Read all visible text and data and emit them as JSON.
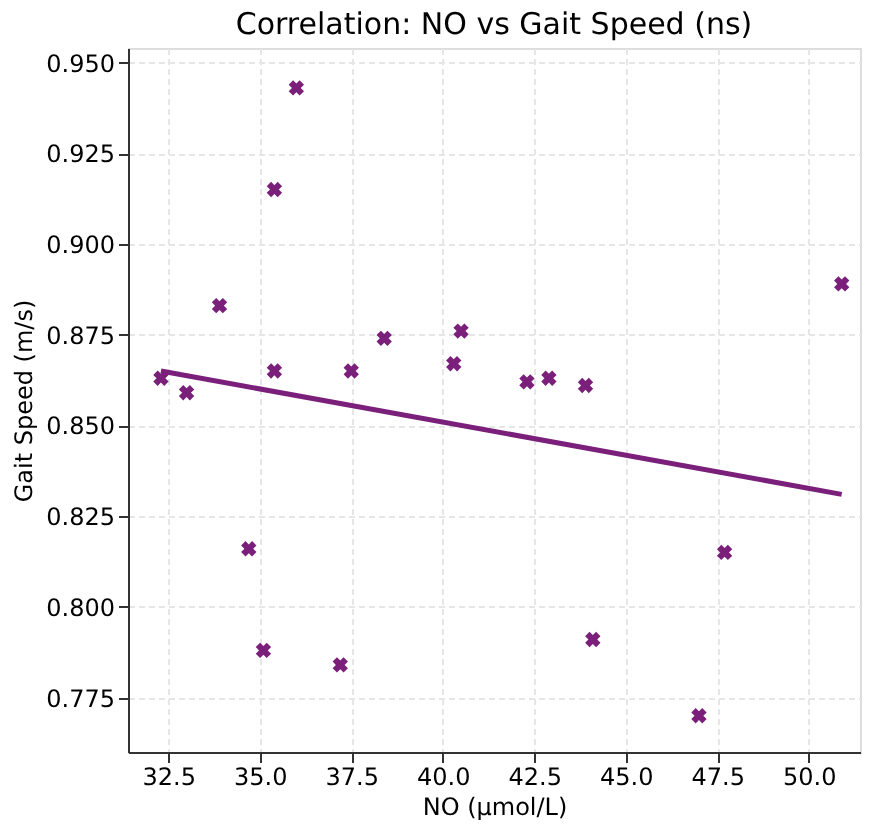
{
  "chart_data": {
    "type": "scatter",
    "title": "Correlation: NO vs Gait Speed (ns)",
    "xlabel": "NO (µmol/L)",
    "ylabel": "Gait Speed (m/s)",
    "xlim": [
      31.4,
      51.4
    ],
    "xticks": [
      {
        "value": 32.5,
        "label": "32.5"
      },
      {
        "value": 35,
        "label": "35.0"
      },
      {
        "value": 37.5,
        "label": "37.5"
      },
      {
        "value": 40,
        "label": "40.0"
      },
      {
        "value": 42.5,
        "label": "42.5"
      },
      {
        "value": 45,
        "label": "45.0"
      },
      {
        "value": 47.5,
        "label": "47.5"
      },
      {
        "value": 50,
        "label": "50.0"
      }
    ],
    "ylim": [
      0.76,
      0.954
    ],
    "yticks": [
      {
        "value": 0.775,
        "label": "0.775"
      },
      {
        "value": 0.8,
        "label": "0.800"
      },
      {
        "value": 0.825,
        "label": "0.825"
      },
      {
        "value": 0.85,
        "label": "0.850"
      },
      {
        "value": 0.875,
        "label": "0.875"
      },
      {
        "value": 0.9,
        "label": "0.900"
      },
      {
        "value": 0.925,
        "label": "0.925"
      },
      {
        "value": 0.95,
        "label": "0.950"
      }
    ],
    "grid": true,
    "series": [
      {
        "color": "#7a1f7a",
        "marker": "cross",
        "x": [
          32.3,
          33.0,
          33.9,
          34.7,
          35.1,
          35.4,
          35.4,
          36.0,
          37.2,
          37.5,
          38.4,
          40.3,
          40.5,
          42.3,
          42.9,
          43.9,
          44.1,
          47.0,
          47.7,
          50.9
        ],
        "values": [
          0.863,
          0.859,
          0.883,
          0.816,
          0.788,
          0.915,
          0.865,
          0.943,
          0.784,
          0.865,
          0.874,
          0.867,
          0.876,
          0.862,
          0.863,
          0.861,
          0.791,
          0.77,
          0.815,
          0.889
        ]
      },
      {
        "type": "line",
        "color": "#7a1f7a",
        "marker": "none",
        "line_style": "solid",
        "x": [
          32.3,
          50.9
        ],
        "values": [
          0.865,
          0.831
        ]
      }
    ]
  }
}
